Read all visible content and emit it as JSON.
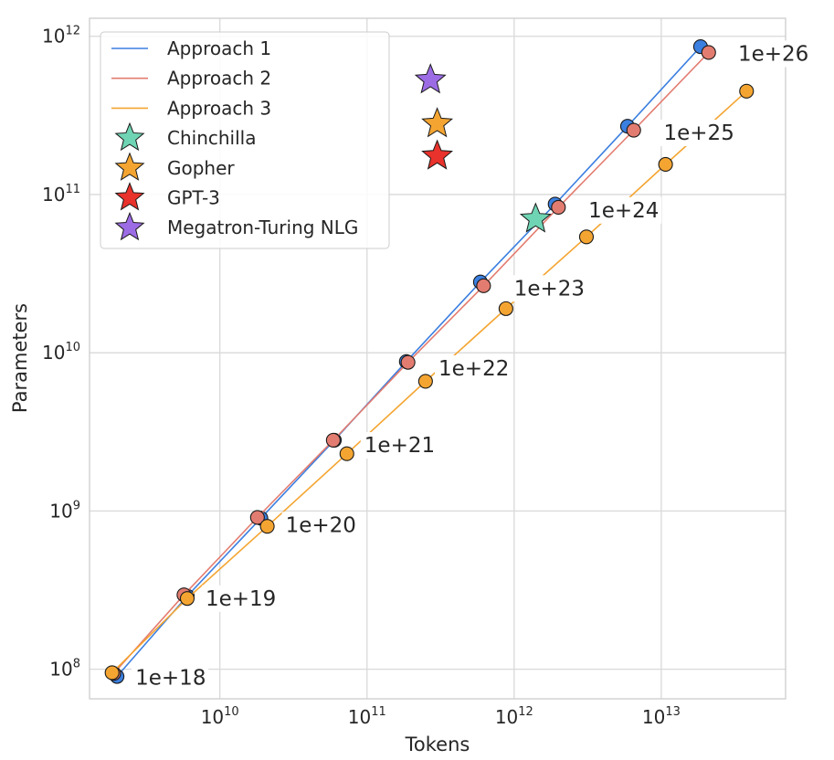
{
  "chart_data": {
    "type": "scatter",
    "xlabel": "Tokens",
    "ylabel": "Parameters",
    "x_scale": "log",
    "y_scale": "log",
    "xlim": [
      1300000000.0,
      70000000000000.0
    ],
    "ylim": [
      65000000.0,
      1300000000000.0
    ],
    "grid": true,
    "legend_position": "top-left",
    "x_ticks": [
      {
        "base": "10",
        "exp": "10",
        "value": 10000000000.0
      },
      {
        "base": "10",
        "exp": "11",
        "value": 100000000000.0
      },
      {
        "base": "10",
        "exp": "12",
        "value": 1000000000000.0
      },
      {
        "base": "10",
        "exp": "13",
        "value": 10000000000000.0
      }
    ],
    "y_ticks": [
      {
        "base": "10",
        "exp": "8",
        "value": 100000000.0
      },
      {
        "base": "10",
        "exp": "9",
        "value": 1000000000.0
      },
      {
        "base": "10",
        "exp": "10",
        "value": 10000000000.0
      },
      {
        "base": "10",
        "exp": "11",
        "value": 100000000000.0
      },
      {
        "base": "10",
        "exp": "12",
        "value": 1000000000000.0
      }
    ],
    "series": [
      {
        "name": "Approach 1",
        "color": "#3b7fe0",
        "points": [
          [
            2000000000.0,
            90000000.0
          ],
          [
            6000000000.0,
            290000000.0
          ],
          [
            19000000000.0,
            900000000.0
          ],
          [
            60000000000.0,
            2800000000.0
          ],
          [
            185000000000.0,
            8800000000.0
          ],
          [
            590000000000.0,
            28000000000.0
          ],
          [
            1900000000000.0,
            87000000000.0
          ],
          [
            5900000000000.0,
            270000000000.0
          ],
          [
            18500000000000.0,
            860000000000.0
          ]
        ]
      },
      {
        "name": "Approach 2",
        "color": "#e37c70",
        "points": [
          [
            1900000000.0,
            94000000.0
          ],
          [
            5700000000.0,
            295000000.0
          ],
          [
            18000000000.0,
            910000000.0
          ],
          [
            59000000000.0,
            2800000000.0
          ],
          [
            190000000000.0,
            8700000000.0
          ],
          [
            620000000000.0,
            26500000000.0
          ],
          [
            2000000000000.0,
            83000000000.0
          ],
          [
            6500000000000.0,
            255000000000.0
          ],
          [
            21000000000000.0,
            790000000000.0
          ]
        ]
      },
      {
        "name": "Approach 3",
        "color": "#f4a531",
        "points": [
          [
            1850000000.0,
            95000000.0
          ],
          [
            6000000000.0,
            280000000.0
          ],
          [
            21000000000.0,
            800000000.0
          ],
          [
            73000000000.0,
            2300000000.0
          ],
          [
            250000000000.0,
            6600000000.0
          ],
          [
            880000000000.0,
            19000000000.0
          ],
          [
            3100000000000.0,
            54000000000.0
          ],
          [
            10700000000000.0,
            155000000000.0
          ],
          [
            38000000000000.0,
            450000000000.0
          ]
        ]
      }
    ],
    "iso_flop_labels": [
      {
        "text": "1e+18",
        "anchor": [
          2000000000.0,
          90000000.0
        ]
      },
      {
        "text": "1e+19",
        "anchor": [
          6000000000.0,
          285000000.0
        ]
      },
      {
        "text": "1e+20",
        "anchor": [
          21000000000.0,
          830000000.0
        ]
      },
      {
        "text": "1e+21",
        "anchor": [
          72000000000.0,
          2650000000.0
        ]
      },
      {
        "text": "1e+22",
        "anchor": [
          230000000000.0,
          8100000000.0
        ]
      },
      {
        "text": "1e+23",
        "anchor": [
          750000000000.0,
          26000000000.0
        ]
      },
      {
        "text": "1e+24",
        "anchor": [
          2400000000000.0,
          81000000000.0
        ]
      },
      {
        "text": "1e+25",
        "anchor": [
          7800000000000.0,
          250000000000.0
        ]
      },
      {
        "text": "1e+26",
        "anchor": [
          25000000000000.0,
          790000000000.0
        ]
      }
    ],
    "models": [
      {
        "name": "Chinchilla",
        "tokens": 1400000000000.0,
        "params": 70000000000.0,
        "color": "#6fd4b3"
      },
      {
        "name": "Gopher",
        "tokens": 300000000000.0,
        "params": 280000000000.0,
        "color": "#f4a531"
      },
      {
        "name": "GPT-3",
        "tokens": 300000000000.0,
        "params": 175000000000.0,
        "color": "#e8322b"
      },
      {
        "name": "Megatron-Turing NLG",
        "tokens": 270000000000.0,
        "params": 530000000000.0,
        "color": "#9c6ce5"
      }
    ]
  }
}
